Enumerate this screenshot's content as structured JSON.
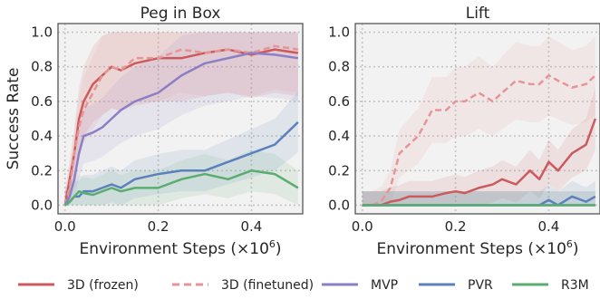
{
  "figure": {
    "legend": [
      {
        "label": "3D (frozen)",
        "color": "#cc5a5c",
        "dash": false
      },
      {
        "label": "3D (finetuned)",
        "color": "#e59597",
        "dash": true
      },
      {
        "label": "MVP",
        "color": "#8c7fc3",
        "dash": false
      },
      {
        "label": "PVR",
        "color": "#5b80be",
        "dash": false
      },
      {
        "label": "R3M",
        "color": "#59ae6f",
        "dash": false
      }
    ]
  },
  "chart_data": [
    {
      "type": "line",
      "title": "Peg in Box",
      "xlabel": "Environment Steps (×10",
      "xlabel_sup": "6",
      "xlabel_end": ")",
      "ylabel": "Success Rate",
      "xlim": [
        -0.015,
        0.51
      ],
      "ylim": [
        -0.05,
        1.05
      ],
      "xticks": [
        0.0,
        0.2,
        0.4
      ],
      "xtick_labels": [
        "0.0",
        "0.2",
        "0.4"
      ],
      "yticks": [
        0.0,
        0.2,
        0.4,
        0.6,
        0.8,
        1.0
      ],
      "ytick_labels": [
        "0.0",
        "0.2",
        "0.4",
        "0.6",
        "0.8",
        "1.0"
      ],
      "grid": true,
      "x": [
        0.0,
        0.01,
        0.02,
        0.03,
        0.04,
        0.06,
        0.08,
        0.1,
        0.12,
        0.15,
        0.2,
        0.25,
        0.3,
        0.35,
        0.4,
        0.45,
        0.5
      ],
      "series": [
        {
          "name": "3D (frozen)",
          "color": "#cc5a5c",
          "dash": false,
          "values": [
            0.0,
            0.15,
            0.3,
            0.5,
            0.6,
            0.7,
            0.75,
            0.8,
            0.78,
            0.82,
            0.85,
            0.85,
            0.88,
            0.9,
            0.87,
            0.9,
            0.88
          ]
        },
        {
          "name": "3D (finetuned)",
          "color": "#e59597",
          "dash": true,
          "values": [
            0.0,
            0.1,
            0.3,
            0.45,
            0.55,
            0.65,
            0.75,
            0.8,
            0.78,
            0.85,
            0.85,
            0.9,
            0.88,
            0.9,
            0.88,
            0.92,
            0.9
          ]
        },
        {
          "name": "MVP",
          "color": "#8c7fc3",
          "dash": false,
          "values": [
            0.0,
            0.05,
            0.15,
            0.3,
            0.4,
            0.42,
            0.45,
            0.5,
            0.55,
            0.6,
            0.65,
            0.75,
            0.82,
            0.85,
            0.88,
            0.87,
            0.85
          ]
        },
        {
          "name": "PVR",
          "color": "#5b80be",
          "dash": false,
          "values": [
            0.0,
            0.02,
            0.05,
            0.05,
            0.08,
            0.08,
            0.1,
            0.12,
            0.1,
            0.15,
            0.18,
            0.2,
            0.2,
            0.25,
            0.3,
            0.35,
            0.48
          ]
        },
        {
          "name": "R3M",
          "color": "#59ae6f",
          "dash": false,
          "values": [
            0.0,
            0.02,
            0.05,
            0.08,
            0.07,
            0.06,
            0.08,
            0.1,
            0.08,
            0.1,
            0.1,
            0.15,
            0.18,
            0.15,
            0.2,
            0.18,
            0.1
          ]
        }
      ]
    },
    {
      "type": "line",
      "title": "Lift",
      "xlabel": "Environment Steps (×10",
      "xlabel_sup": "6",
      "xlabel_end": ")",
      "ylabel": "",
      "xlim": [
        -0.015,
        0.51
      ],
      "ylim": [
        -0.05,
        1.05
      ],
      "xticks": [
        0.0,
        0.2,
        0.4
      ],
      "xtick_labels": [
        "0.0",
        "0.2",
        "0.4"
      ],
      "yticks": [
        0.0,
        0.2,
        0.4,
        0.6,
        0.8,
        1.0
      ],
      "ytick_labels": [
        "0.0",
        "0.2",
        "0.4",
        "0.6",
        "0.8",
        "1.0"
      ],
      "grid": true,
      "x": [
        0.0,
        0.02,
        0.04,
        0.06,
        0.08,
        0.1,
        0.12,
        0.15,
        0.18,
        0.2,
        0.22,
        0.25,
        0.28,
        0.3,
        0.33,
        0.36,
        0.38,
        0.4,
        0.42,
        0.45,
        0.48,
        0.5
      ],
      "series": [
        {
          "name": "3D (frozen)",
          "color": "#cc5a5c",
          "dash": false,
          "values": [
            0.0,
            0.0,
            0.0,
            0.02,
            0.03,
            0.05,
            0.05,
            0.05,
            0.07,
            0.08,
            0.07,
            0.1,
            0.12,
            0.15,
            0.12,
            0.2,
            0.15,
            0.25,
            0.2,
            0.3,
            0.35,
            0.5
          ]
        },
        {
          "name": "3D (finetuned)",
          "color": "#e59597",
          "dash": true,
          "values": [
            0.0,
            0.0,
            0.02,
            0.1,
            0.3,
            0.35,
            0.4,
            0.55,
            0.55,
            0.6,
            0.6,
            0.65,
            0.6,
            0.65,
            0.72,
            0.7,
            0.7,
            0.75,
            0.72,
            0.68,
            0.7,
            0.75
          ]
        },
        {
          "name": "MVP",
          "color": "#8c7fc3",
          "dash": false,
          "values": [
            0.0,
            0.0,
            0.0,
            0.0,
            0.0,
            0.0,
            0.0,
            0.0,
            0.0,
            0.0,
            0.0,
            0.0,
            0.0,
            0.0,
            0.0,
            0.0,
            0.0,
            0.0,
            0.0,
            0.0,
            0.0,
            0.0
          ]
        },
        {
          "name": "PVR",
          "color": "#5b80be",
          "dash": false,
          "values": [
            0.0,
            0.0,
            0.0,
            0.0,
            0.0,
            0.0,
            0.0,
            0.0,
            0.0,
            0.0,
            0.0,
            0.0,
            0.0,
            0.0,
            0.0,
            0.0,
            0.0,
            0.03,
            0.0,
            0.05,
            0.02,
            0.05
          ]
        },
        {
          "name": "R3M",
          "color": "#59ae6f",
          "dash": false,
          "values": [
            0.0,
            0.0,
            0.0,
            0.0,
            0.0,
            0.0,
            0.0,
            0.0,
            0.0,
            0.0,
            0.0,
            0.0,
            0.0,
            0.0,
            0.0,
            0.0,
            0.0,
            0.0,
            0.0,
            0.0,
            0.0,
            0.0
          ]
        }
      ]
    }
  ]
}
